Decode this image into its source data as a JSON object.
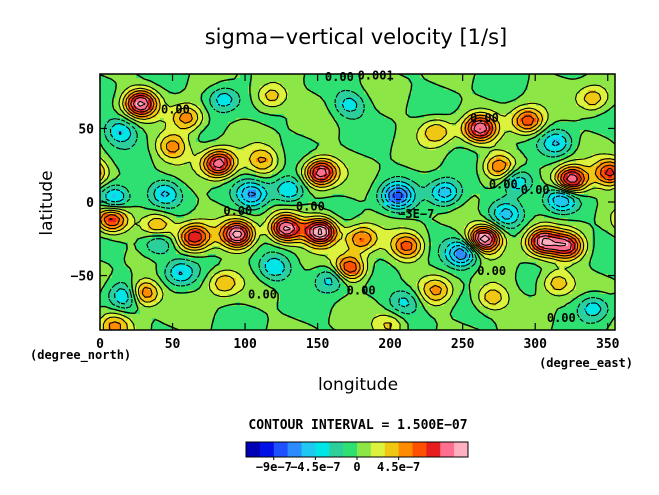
{
  "chart_data": {
    "type": "heatmap",
    "title": "sigma−vertical velocity [1/s]",
    "xlabel": "longitude",
    "ylabel": "latitude",
    "x_unit": "(degree_east)",
    "y_unit": "(degree_north)",
    "xlim": [
      0,
      355
    ],
    "ylim": [
      -87,
      87
    ],
    "x_ticks": [
      "0",
      "50",
      "100",
      "150",
      "200",
      "250",
      "300",
      "350"
    ],
    "x_tick_values": [
      0,
      50,
      100,
      150,
      200,
      250,
      300,
      350
    ],
    "y_ticks": [
      "50",
      "0",
      "−50"
    ],
    "y_tick_values": [
      50,
      0,
      -50
    ],
    "contour_interval_text": "CONTOUR INTERVAL = 1.500E−07",
    "contour_interval": 1.5e-07,
    "contour_labels": [
      {
        "text": "0.00",
        "lon": 52,
        "lat": 63
      },
      {
        "text": "0.00",
        "lon": 165,
        "lat": 85
      },
      {
        "text": "0.001",
        "lon": 190,
        "lat": 86
      },
      {
        "text": "0.00",
        "lon": 265,
        "lat": 57
      },
      {
        "text": "0.00",
        "lon": 278,
        "lat": 12
      },
      {
        "text": "0.00",
        "lon": 300,
        "lat": 8
      },
      {
        "text": "0.00",
        "lon": 95,
        "lat": -6
      },
      {
        "text": "0.00",
        "lon": 145,
        "lat": -3
      },
      {
        "text": "−3E−7",
        "lon": 218,
        "lat": -8
      },
      {
        "text": "0.00",
        "lon": 270,
        "lat": -47
      },
      {
        "text": "0.00",
        "lon": 112,
        "lat": -63
      },
      {
        "text": "0.00",
        "lon": 180,
        "lat": -60
      },
      {
        "text": "0.00",
        "lon": 318,
        "lat": -79
      }
    ],
    "colorbar": {
      "ticks": [
        "−9e−7",
        "−4.5e−7",
        "0",
        "4.5e−7"
      ],
      "tick_values": [
        -9e-07,
        -4.5e-07,
        0,
        4.5e-07
      ],
      "levels": [
        -1.05e-06,
        -9e-07,
        -7.5e-07,
        -6e-07,
        -4.5e-07,
        -3e-07,
        -1.5e-07,
        0,
        1.5e-07,
        3e-07,
        4.5e-07,
        6e-07,
        7.5e-07,
        9e-07,
        1.05e-06
      ],
      "colors": [
        "#0000b4",
        "#0010e6",
        "#1e50ff",
        "#2c8cff",
        "#1ec8f0",
        "#00e6e6",
        "#2ccf9a",
        "#2ee072",
        "#8ce646",
        "#dcf23c",
        "#f0c814",
        "#ff8c00",
        "#ff5000",
        "#e61e1e",
        "#ff7090",
        "#ffb0c0"
      ]
    },
    "features": [
      {
        "sign": 1,
        "lon": 28,
        "lat": 67,
        "amp": 7.0
      },
      {
        "sign": -1,
        "lon": 14,
        "lat": 48,
        "amp": 3.0
      },
      {
        "sign": 1,
        "lon": 60,
        "lat": 57,
        "amp": 4.0
      },
      {
        "sign": 1,
        "lon": 50,
        "lat": 38,
        "amp": 3.5
      },
      {
        "sign": -1,
        "lon": 85,
        "lat": 70,
        "amp": 3.0
      },
      {
        "sign": 1,
        "lon": 118,
        "lat": 72,
        "amp": 3.0
      },
      {
        "sign": -1,
        "lon": 172,
        "lat": 66,
        "amp": 2.5
      },
      {
        "sign": 1,
        "lon": 232,
        "lat": 48,
        "amp": 3.0
      },
      {
        "sign": 1,
        "lon": 262,
        "lat": 50,
        "amp": 6.5
      },
      {
        "sign": 1,
        "lon": 295,
        "lat": 55,
        "amp": 5.0
      },
      {
        "sign": 1,
        "lon": 340,
        "lat": 70,
        "amp": 3.0
      },
      {
        "sign": -1,
        "lon": 315,
        "lat": 40,
        "amp": 3.0
      },
      {
        "sign": 1,
        "lon": 82,
        "lat": 26,
        "amp": 7.0
      },
      {
        "sign": 1,
        "lon": 112,
        "lat": 28,
        "amp": 3.0
      },
      {
        "sign": 1,
        "lon": 152,
        "lat": 20,
        "amp": 7.0
      },
      {
        "sign": 1,
        "lon": 275,
        "lat": 24,
        "amp": 4.0
      },
      {
        "sign": 1,
        "lon": 325,
        "lat": 15,
        "amp": 7.5
      },
      {
        "sign": 1,
        "lon": 352,
        "lat": 20,
        "amp": 5.5
      },
      {
        "sign": -1,
        "lon": 10,
        "lat": 3,
        "amp": 4.0
      },
      {
        "sign": -1,
        "lon": 45,
        "lat": 6,
        "amp": 3.0
      },
      {
        "sign": -1,
        "lon": 105,
        "lat": 5,
        "amp": 4.0
      },
      {
        "sign": -1,
        "lon": 130,
        "lat": 8,
        "amp": 3.5
      },
      {
        "sign": -1,
        "lon": 205,
        "lat": 4,
        "amp": 5.0
      },
      {
        "sign": -1,
        "lon": 238,
        "lat": 6,
        "amp": 4.0
      },
      {
        "sign": -1,
        "lon": 288,
        "lat": 14,
        "amp": 3.5
      },
      {
        "sign": -1,
        "lon": 318,
        "lat": 2,
        "amp": 4.0
      },
      {
        "sign": 1,
        "lon": 8,
        "lat": -12,
        "amp": 5.5
      },
      {
        "sign": 1,
        "lon": 40,
        "lat": -16,
        "amp": 3.5
      },
      {
        "sign": 1,
        "lon": 65,
        "lat": -24,
        "amp": 6.0
      },
      {
        "sign": 1,
        "lon": 95,
        "lat": -22,
        "amp": 7.5
      },
      {
        "sign": 1,
        "lon": 128,
        "lat": -18,
        "amp": 7.5
      },
      {
        "sign": 1,
        "lon": 152,
        "lat": -20,
        "amp": 8.5
      },
      {
        "sign": 1,
        "lon": 180,
        "lat": -25,
        "amp": 4.0
      },
      {
        "sign": 1,
        "lon": 212,
        "lat": -30,
        "amp": 4.5
      },
      {
        "sign": 1,
        "lon": 265,
        "lat": -25,
        "amp": 8.0
      },
      {
        "sign": 1,
        "lon": 305,
        "lat": -27,
        "amp": 6.5
      },
      {
        "sign": 1,
        "lon": 322,
        "lat": -30,
        "amp": 6.0
      },
      {
        "sign": -1,
        "lon": 250,
        "lat": -35,
        "amp": 5.0
      },
      {
        "sign": -1,
        "lon": 40,
        "lat": -28,
        "amp": 3.0
      },
      {
        "sign": -1,
        "lon": 280,
        "lat": -8,
        "amp": 3.0
      },
      {
        "sign": 1,
        "lon": 30,
        "lat": -62,
        "amp": 5.0
      },
      {
        "sign": 1,
        "lon": 85,
        "lat": -55,
        "amp": 3.0
      },
      {
        "sign": -1,
        "lon": 18,
        "lat": -64,
        "amp": 3.5
      },
      {
        "sign": -1,
        "lon": 55,
        "lat": -48,
        "amp": 3.0
      },
      {
        "sign": -1,
        "lon": 120,
        "lat": -45,
        "amp": 3.0
      },
      {
        "sign": -1,
        "lon": 160,
        "lat": -52,
        "amp": 3.0
      },
      {
        "sign": 1,
        "lon": 172,
        "lat": -45,
        "amp": 5.5
      },
      {
        "sign": 1,
        "lon": 232,
        "lat": -60,
        "amp": 3.0
      },
      {
        "sign": 1,
        "lon": 270,
        "lat": -65,
        "amp": 3.0
      },
      {
        "sign": 1,
        "lon": 315,
        "lat": -55,
        "amp": 3.0
      },
      {
        "sign": -1,
        "lon": 210,
        "lat": -68,
        "amp": 2.5
      },
      {
        "sign": -1,
        "lon": 340,
        "lat": -72,
        "amp": 3.0
      },
      {
        "sign": 1,
        "lon": 10,
        "lat": -84,
        "amp": 3.0
      },
      {
        "sign": 1,
        "lon": 200,
        "lat": -84,
        "amp": 2.5
      }
    ]
  }
}
